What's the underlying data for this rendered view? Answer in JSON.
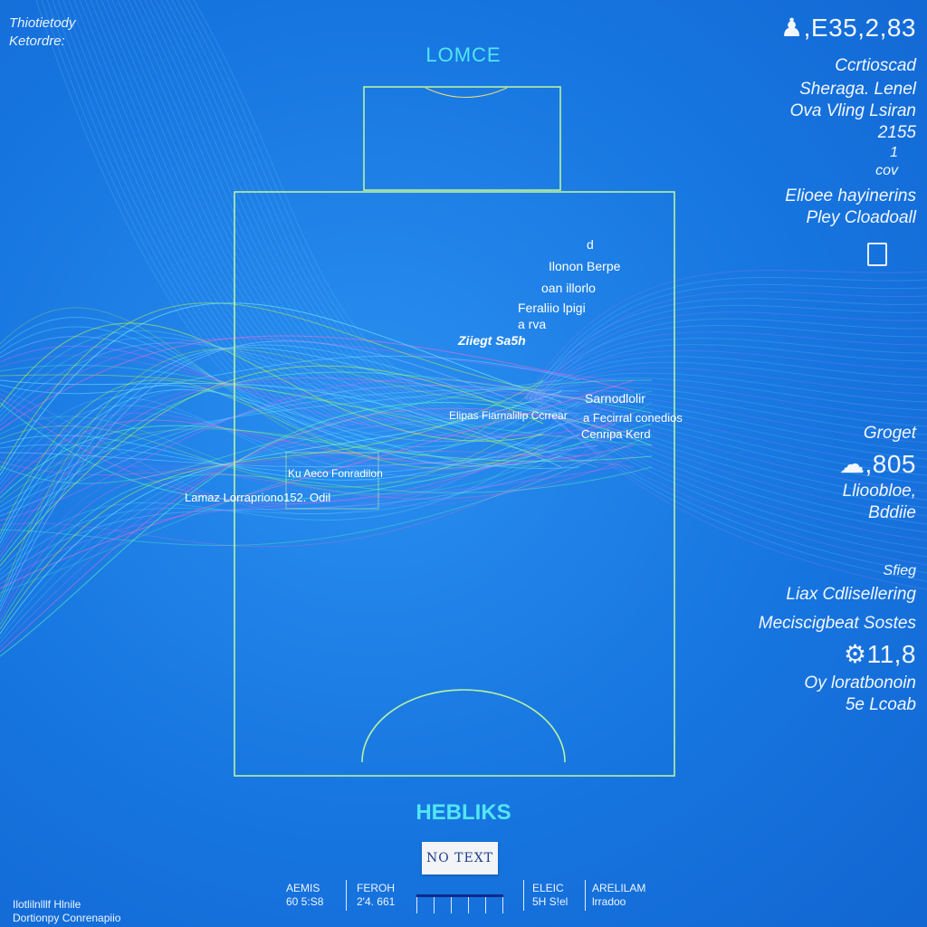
{
  "corner": {
    "line1": "Thiotietody",
    "line2": "Ketordre:"
  },
  "top_title": "LOMCE",
  "bottom_title": "HEBLIKS",
  "right_panel": {
    "value_top": ",E35,2,83",
    "line1": "Ccrtioscad",
    "line2": "Sheraga. Lenel",
    "line3": "Ova Vling Lsiran",
    "line4": "2155",
    "line5": "1",
    "line6": "cov",
    "line7": "Elioee hayinerins",
    "line8": "Pley Cloadoall",
    "group_label": "Groget",
    "value_mid": ",805",
    "line9": "Llioobloe,",
    "line10": "Bddiie",
    "line11": "Sfieg",
    "line12": "Liax Cdlisellering",
    "line13": "Meciscigbeat Sostes",
    "value_low": "11,8",
    "line14": "Oy loratbonoin",
    "line15": "5e Lcoab"
  },
  "field_labels": {
    "l1": "d",
    "l2": "Ilonon Berpe",
    "l3": "oan illorlo",
    "l4": "Feraliio lpigi",
    "l5": "a rva",
    "l6": "Ziiegt Sa5h",
    "l7": "Elipas Fiarnalilip Ccrrear",
    "l8": "Sarnodlolir",
    "l9": "a Fecirral conedios",
    "l10": "Cenripa Kerd",
    "l11": "Ku Aeco Fonradilon",
    "l12": "Lamaz Lorrapriono152. Odil"
  },
  "button_label": "NO TEXT",
  "footer": {
    "left_line1": "Ilotlilnlllf Hlnile",
    "left_line2": "Dortionpy Conrenapiio",
    "col1_a": "AEMIS",
    "col1_b": "60 5:S8",
    "col2_a": "FEROH",
    "col2_b": "2'4. 661",
    "col3_a": "ELEIC",
    "col3_b": "5H S!el",
    "col4_a": "ARELILAM",
    "col4_b": "lrradoo"
  },
  "colors": {
    "background": "#1776e0",
    "pitch_line": "#c8ff9a",
    "title": "#52e6f2"
  }
}
